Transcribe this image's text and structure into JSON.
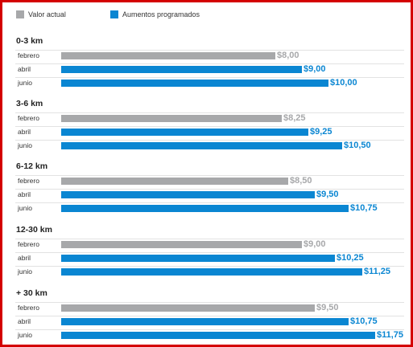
{
  "colors": {
    "actual": "#a7a8aa",
    "programmed": "#0a86d2",
    "border": "#d40000"
  },
  "chart_data": {
    "type": "bar",
    "orientation": "horizontal",
    "legend": [
      {
        "label": "Valor actual",
        "color": "#a7a8aa"
      },
      {
        "label": "Aumentos programados",
        "color": "#0a86d2"
      }
    ],
    "legend_position": "top-left",
    "xlim": [
      0,
      12
    ],
    "grid": false,
    "groups": [
      {
        "title": "0-3 km",
        "rows": [
          {
            "label": "febrero",
            "value": 8.0,
            "display": "$8,00",
            "kind": "actual"
          },
          {
            "label": "abril",
            "value": 9.0,
            "display": "$9,00",
            "kind": "programmed"
          },
          {
            "label": "junio",
            "value": 10.0,
            "display": "$10,00",
            "kind": "programmed"
          }
        ]
      },
      {
        "title": "3-6 km",
        "rows": [
          {
            "label": "febrero",
            "value": 8.25,
            "display": "$8,25",
            "kind": "actual"
          },
          {
            "label": "abril",
            "value": 9.25,
            "display": "$9,25",
            "kind": "programmed"
          },
          {
            "label": "junio",
            "value": 10.5,
            "display": "$10,50",
            "kind": "programmed"
          }
        ]
      },
      {
        "title": "6-12 km",
        "rows": [
          {
            "label": "febrero",
            "value": 8.5,
            "display": "$8,50",
            "kind": "actual"
          },
          {
            "label": "abril",
            "value": 9.5,
            "display": "$9,50",
            "kind": "programmed"
          },
          {
            "label": "junio",
            "value": 10.75,
            "display": "$10,75",
            "kind": "programmed"
          }
        ]
      },
      {
        "title": "12-30 km",
        "rows": [
          {
            "label": "febrero",
            "value": 9.0,
            "display": "$9,00",
            "kind": "actual"
          },
          {
            "label": "abril",
            "value": 10.25,
            "display": "$10,25",
            "kind": "programmed"
          },
          {
            "label": "junio",
            "value": 11.25,
            "display": "$11,25",
            "kind": "programmed"
          }
        ]
      },
      {
        "title": "+ 30 km",
        "rows": [
          {
            "label": "febrero",
            "value": 9.5,
            "display": "$9,50",
            "kind": "actual"
          },
          {
            "label": "abril",
            "value": 10.75,
            "display": "$10,75",
            "kind": "programmed"
          },
          {
            "label": "junio",
            "value": 11.75,
            "display": "$11,75",
            "kind": "programmed"
          }
        ]
      }
    ]
  }
}
